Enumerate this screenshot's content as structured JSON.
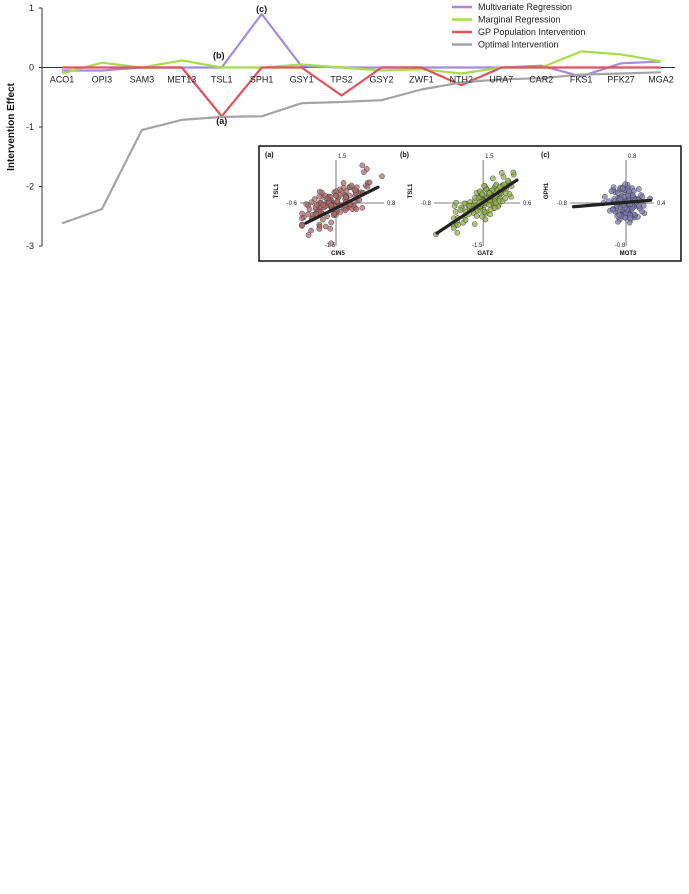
{
  "chart_data": [
    {
      "type": "line",
      "title": "",
      "xlabel": "",
      "ylabel": "Intervention Effect",
      "ylim": [
        -3,
        1
      ],
      "yticks": [
        1,
        0,
        -1,
        -2,
        -3
      ],
      "categories": [
        "ACO1",
        "OPI3",
        "SAM3",
        "MET13",
        "TSL1",
        "SPH1",
        "GSY1",
        "TPS2",
        "GSY2",
        "ZWF1",
        "NTH2",
        "URA7",
        "CAR2",
        "FKS1",
        "PFK27",
        "MGA2"
      ],
      "legend_position": "top-right",
      "series": [
        {
          "name": "Multivariate Regression",
          "color": "#a28be0",
          "values": [
            -0.05,
            -0.05,
            0.0,
            0.0,
            0.0,
            0.9,
            0.02,
            0.0,
            0.0,
            0.0,
            0.0,
            0.0,
            0.03,
            -0.15,
            0.07,
            0.1
          ]
        },
        {
          "name": "Marginal Regression",
          "color": "#a6dd4a",
          "values": [
            -0.1,
            0.08,
            0.0,
            0.12,
            0.0,
            0.0,
            0.05,
            0.0,
            -0.05,
            -0.03,
            -0.1,
            0.0,
            0.0,
            0.27,
            0.22,
            0.1
          ]
        },
        {
          "name": "GP Population Intervention",
          "color": "#e5505e",
          "values": [
            0.0,
            0.0,
            0.0,
            0.0,
            -0.82,
            0.0,
            0.0,
            -0.47,
            0.0,
            0.0,
            -0.3,
            0.0,
            0.0,
            0.0,
            0.0,
            0.0
          ]
        },
        {
          "name": "Optimal Intervention",
          "color": "#a4a4a4",
          "values": [
            -2.62,
            -2.38,
            -1.05,
            -0.88,
            -0.83,
            -0.82,
            -0.6,
            -0.58,
            -0.55,
            -0.37,
            -0.25,
            -0.2,
            -0.18,
            -0.12,
            -0.1,
            -0.08
          ]
        }
      ],
      "annotations": [
        {
          "text": "(a)",
          "category": "TSL1",
          "y": -0.9
        },
        {
          "text": "(b)",
          "category": "TSL1",
          "y": 0.2
        },
        {
          "text": "(c)",
          "category": "SPH1",
          "y": 0.98
        }
      ]
    },
    {
      "type": "scatter",
      "panel": "(a)",
      "xlabel": "CIN5",
      "ylabel": "TSL1",
      "x_ticks": [
        "-0.6",
        "0.8"
      ],
      "y_ticks": [
        "1.5",
        "-1.5"
      ],
      "xlim": [
        -0.6,
        0.8
      ],
      "ylim": [
        -1.5,
        1.5
      ],
      "point_color": "#b06b6b",
      "fit_line": [
        [
          -0.5,
          -0.7
        ],
        [
          0.7,
          0.55
        ]
      ]
    },
    {
      "type": "scatter",
      "panel": "(b)",
      "xlabel": "GAT2",
      "ylabel": "TSL1",
      "x_ticks": [
        "-0.8",
        "0.6"
      ],
      "y_ticks": [
        "1.5",
        "-1.5"
      ],
      "xlim": [
        -0.8,
        0.6
      ],
      "ylim": [
        -1.5,
        1.5
      ],
      "point_color": "#93b04a",
      "fit_line": [
        [
          -0.75,
          -1.05
        ],
        [
          0.55,
          0.8
        ]
      ]
    },
    {
      "type": "scatter",
      "panel": "(c)",
      "xlabel": "MOT3",
      "ylabel": "GPH1",
      "x_ticks": [
        "-0.8",
        "0.4"
      ],
      "y_ticks": [
        "0.8",
        "-0.8"
      ],
      "xlim": [
        -0.8,
        0.4
      ],
      "ylim": [
        -0.8,
        0.8
      ],
      "point_color": "#7f79b0",
      "fit_line": [
        [
          -0.75,
          -0.07
        ],
        [
          0.35,
          0.05
        ]
      ]
    }
  ]
}
